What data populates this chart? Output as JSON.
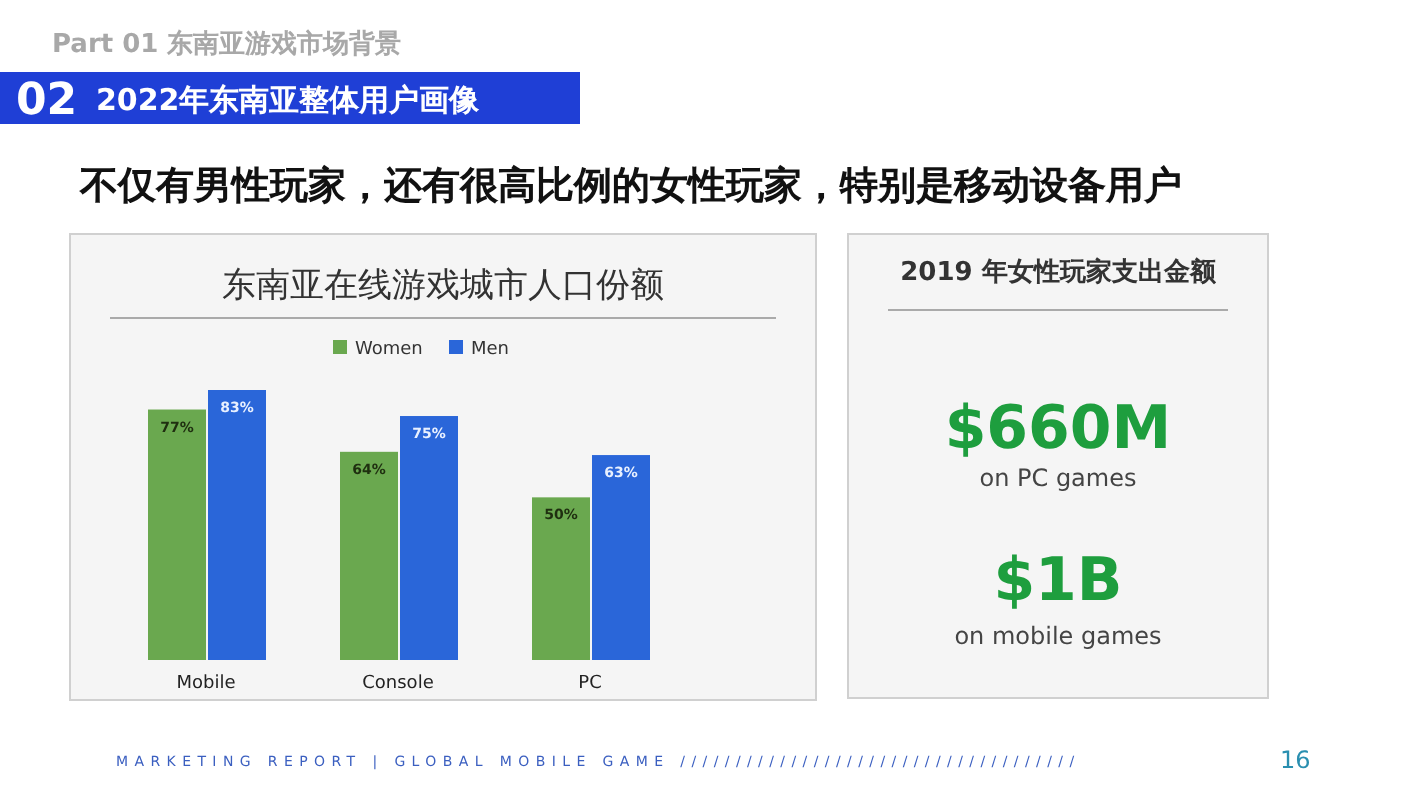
{
  "chart_data": [
    {
      "type": "bar",
      "title": "东南亚在线游戏城市人口份额",
      "annotations": [
        "Part 01 东南亚游戏市场背景",
        "02",
        "2022年东南亚整体用户画像",
        "不仅有男性玩家，还有很高比例的女性玩家，特别是移动设备用户",
        "MARKETING REPORT | GLOBAL MOBILE GAME ////////////////////////////////////",
        "16"
      ],
      "categories": [
        "Mobile",
        "Console",
        "PC"
      ],
      "series": [
        {
          "name": "Women",
          "color": "#6aa84f",
          "values": [
            77,
            64,
            50
          ],
          "value_labels": [
            "77%",
            "64%",
            "50%"
          ]
        },
        {
          "name": "Men",
          "color": "#2a66d9",
          "values": [
            83,
            75,
            63
          ],
          "value_labels": [
            "83%",
            "75%",
            "63%"
          ]
        }
      ],
      "legend": "top"
    },
    {
      "type": "other",
      "title": "2019 年女性玩家支出金额",
      "annotations": [
        "$660M",
        "on PC games",
        "$1B",
        "on mobile games"
      ]
    }
  ]
}
